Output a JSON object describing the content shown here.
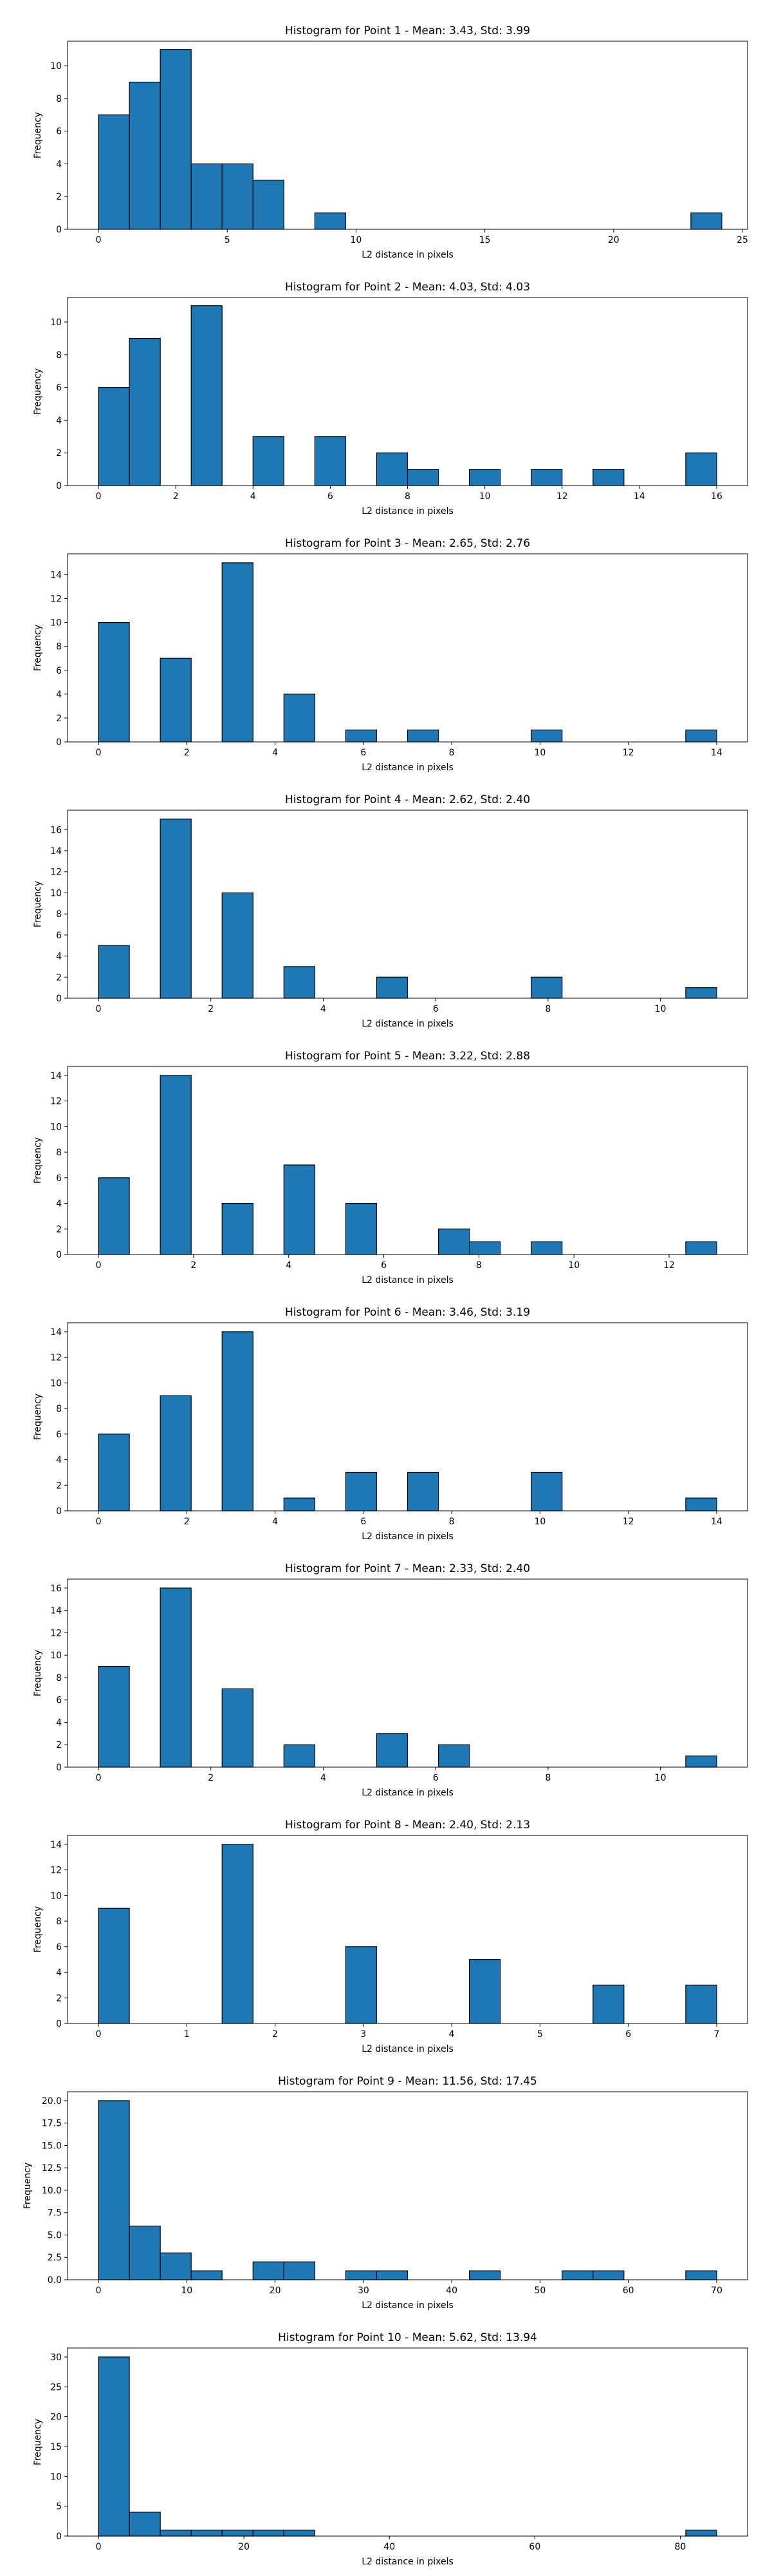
{
  "chart_data": [
    {
      "type": "bar",
      "title": "Histogram for Point 1 - Mean: 3.43, Std: 3.99",
      "xlabel": "L2 distance in pixels",
      "ylabel": "Frequency",
      "bin_width": 1.2,
      "bins_start": [
        0,
        1.2,
        2.4,
        3.6,
        4.8,
        6.0,
        8.4,
        23.0
      ],
      "values": [
        7,
        9,
        11,
        4,
        4,
        3,
        1,
        1
      ],
      "xlim": [
        -1.2,
        25.2
      ],
      "ylim": [
        0,
        11.5
      ],
      "xticks": [
        0,
        5,
        10,
        15,
        20,
        25
      ],
      "yticks": [
        0,
        2,
        4,
        6,
        8,
        10
      ],
      "bar_color": "#1f77b4",
      "grid": false
    },
    {
      "type": "bar",
      "title": "Histogram for Point 2 - Mean: 4.03, Std: 4.03",
      "xlabel": "L2 distance in pixels",
      "ylabel": "Frequency",
      "bin_width": 0.8,
      "bins_start": [
        0,
        0.8,
        2.4,
        4.0,
        5.6,
        7.2,
        8.0,
        9.6,
        11.2,
        12.8,
        15.2
      ],
      "values": [
        6,
        9,
        11,
        3,
        3,
        2,
        1,
        1,
        1,
        1,
        2
      ],
      "xlim": [
        -0.8,
        16.8
      ],
      "ylim": [
        0,
        11.5
      ],
      "xticks": [
        0,
        2,
        4,
        6,
        8,
        10,
        12,
        14,
        16
      ],
      "yticks": [
        0,
        2,
        4,
        6,
        8,
        10
      ],
      "bar_color": "#1f77b4",
      "grid": false
    },
    {
      "type": "bar",
      "title": "Histogram for Point 3 - Mean: 2.65, Std: 2.76",
      "xlabel": "L2 distance in pixels",
      "ylabel": "Frequency",
      "bin_width": 0.7,
      "bins_start": [
        0,
        1.4,
        2.8,
        4.2,
        5.6,
        7.0,
        9.8,
        13.3
      ],
      "values": [
        10,
        7,
        15,
        4,
        1,
        1,
        1,
        1
      ],
      "xlim": [
        -0.7,
        14.7
      ],
      "ylim": [
        0,
        15.75
      ],
      "xticks": [
        0,
        2,
        4,
        6,
        8,
        10,
        12,
        14
      ],
      "yticks": [
        0,
        2,
        4,
        6,
        8,
        10,
        12,
        14
      ],
      "bar_color": "#1f77b4",
      "grid": false
    },
    {
      "type": "bar",
      "title": "Histogram for Point 4 - Mean: 2.62, Std: 2.40",
      "xlabel": "L2 distance in pixels",
      "ylabel": "Frequency",
      "bin_width": 0.55,
      "bins_start": [
        0,
        1.1,
        2.2,
        3.3,
        4.95,
        7.7,
        10.45
      ],
      "values": [
        5,
        17,
        10,
        3,
        2,
        2,
        1
      ],
      "xlim": [
        -0.55,
        11.55
      ],
      "ylim": [
        0,
        17.85
      ],
      "xticks": [
        0,
        2,
        4,
        6,
        8,
        10
      ],
      "yticks": [
        0,
        2,
        4,
        6,
        8,
        10,
        12,
        14,
        16
      ],
      "bar_color": "#1f77b4",
      "grid": false
    },
    {
      "type": "bar",
      "title": "Histogram for Point 5 - Mean: 3.22, Std: 2.88",
      "xlabel": "L2 distance in pixels",
      "ylabel": "Frequency",
      "bin_width": 0.65,
      "bins_start": [
        0,
        1.3,
        2.6,
        3.9,
        5.2,
        7.15,
        7.8,
        9.1,
        12.35
      ],
      "values": [
        6,
        14,
        4,
        7,
        4,
        2,
        1,
        1,
        1
      ],
      "xlim": [
        -0.65,
        13.65
      ],
      "ylim": [
        0,
        14.7
      ],
      "xticks": [
        0,
        2,
        4,
        6,
        8,
        10,
        12
      ],
      "yticks": [
        0,
        2,
        4,
        6,
        8,
        10,
        12,
        14
      ],
      "bar_color": "#1f77b4",
      "grid": false
    },
    {
      "type": "bar",
      "title": "Histogram for Point 6 - Mean: 3.46, Std: 3.19",
      "xlabel": "L2 distance in pixels",
      "ylabel": "Frequency",
      "bin_width": 0.7,
      "bins_start": [
        0,
        1.4,
        2.8,
        4.2,
        5.6,
        7.0,
        9.8,
        13.3
      ],
      "values": [
        6,
        9,
        14,
        1,
        3,
        3,
        3,
        1
      ],
      "xlim": [
        -0.7,
        14.7
      ],
      "ylim": [
        0,
        14.7
      ],
      "xticks": [
        0,
        2,
        4,
        6,
        8,
        10,
        12,
        14
      ],
      "yticks": [
        0,
        2,
        4,
        6,
        8,
        10,
        12,
        14
      ],
      "bar_color": "#1f77b4",
      "grid": false
    },
    {
      "type": "bar",
      "title": "Histogram for Point 7 - Mean: 2.33, Std: 2.40",
      "xlabel": "L2 distance in pixels",
      "ylabel": "Frequency",
      "bin_width": 0.55,
      "bins_start": [
        0,
        1.1,
        2.2,
        3.3,
        4.95,
        6.05,
        10.45
      ],
      "values": [
        9,
        16,
        7,
        2,
        3,
        2,
        1
      ],
      "xlim": [
        -0.55,
        11.55
      ],
      "ylim": [
        0,
        16.8
      ],
      "xticks": [
        0,
        2,
        4,
        6,
        8,
        10
      ],
      "yticks": [
        0,
        2,
        4,
        6,
        8,
        10,
        12,
        14,
        16
      ],
      "bar_color": "#1f77b4",
      "grid": false
    },
    {
      "type": "bar",
      "title": "Histogram for Point 8 - Mean: 2.40, Std: 2.13",
      "xlabel": "L2 distance in pixels",
      "ylabel": "Frequency",
      "bin_width": 0.35,
      "bins_start": [
        0,
        1.4,
        2.8,
        4.2,
        5.6,
        6.65
      ],
      "values": [
        9,
        14,
        6,
        5,
        3,
        3
      ],
      "xlim": [
        -0.35,
        7.35
      ],
      "ylim": [
        0,
        14.7
      ],
      "xticks": [
        0,
        1,
        2,
        3,
        4,
        5,
        6,
        7
      ],
      "yticks": [
        0,
        2,
        4,
        6,
        8,
        10,
        12,
        14
      ],
      "bar_color": "#1f77b4",
      "grid": false
    },
    {
      "type": "bar",
      "title": "Histogram for Point 9 - Mean: 11.56, Std: 17.45",
      "xlabel": "L2 distance in pixels",
      "ylabel": "Frequency",
      "bin_width": 3.5,
      "bins_start": [
        0,
        3.5,
        7.0,
        10.5,
        17.5,
        21.0,
        28.0,
        31.5,
        42.0,
        52.5,
        56.0,
        66.5
      ],
      "values": [
        20,
        6,
        3,
        1,
        2,
        2,
        1,
        1,
        1,
        1,
        1,
        1
      ],
      "xlim": [
        -3.5,
        73.5
      ],
      "ylim": [
        0,
        21
      ],
      "xticks": [
        0,
        10,
        20,
        30,
        40,
        50,
        60,
        70
      ],
      "yticks": [
        0,
        2.5,
        5.0,
        7.5,
        10.0,
        12.5,
        15.0,
        17.5,
        20.0
      ],
      "ytick_labels": [
        "0.0",
        "2.5",
        "5.0",
        "7.5",
        "10.0",
        "12.5",
        "15.0",
        "17.5",
        "20.0"
      ],
      "bar_color": "#1f77b4",
      "grid": false
    },
    {
      "type": "bar",
      "title": "Histogram for Point 10 - Mean: 5.62, Std: 13.94",
      "xlabel": "L2 distance in pixels",
      "ylabel": "Frequency",
      "bin_width": 4.25,
      "bins_start": [
        0,
        4.25,
        8.5,
        12.75,
        17.0,
        21.25,
        25.5,
        80.75
      ],
      "values": [
        30,
        4,
        1,
        1,
        1,
        1,
        1,
        1
      ],
      "xlim": [
        -4.25,
        89.25
      ],
      "ylim": [
        0,
        31.5
      ],
      "xticks": [
        0,
        20,
        40,
        60,
        80
      ],
      "yticks": [
        0,
        5,
        10,
        15,
        20,
        25,
        30
      ],
      "bar_color": "#1f77b4",
      "grid": false
    }
  ]
}
